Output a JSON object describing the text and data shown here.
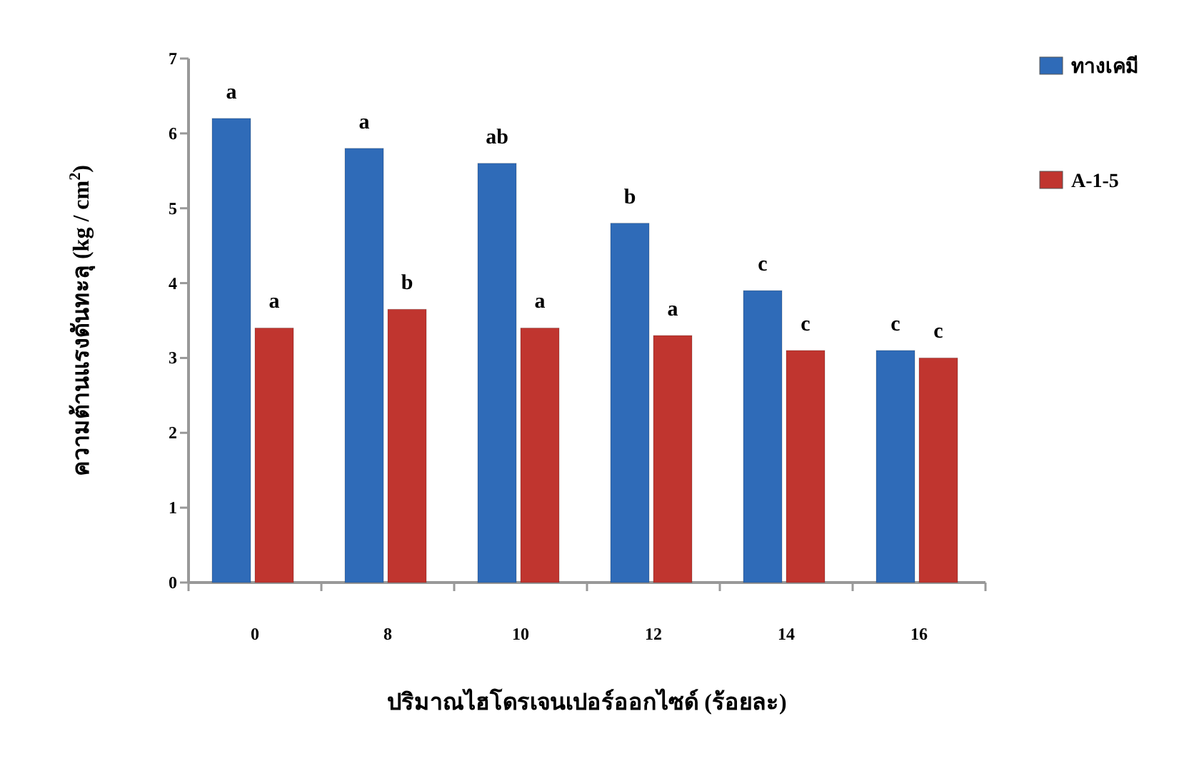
{
  "chart_data": {
    "type": "bar",
    "categories": [
      "0",
      "8",
      "10",
      "12",
      "14",
      "16"
    ],
    "series": [
      {
        "name": "ทางเคมี",
        "color": "#2f6bb8",
        "values": [
          6.2,
          5.8,
          5.6,
          4.8,
          3.9,
          3.1
        ]
      },
      {
        "name": "A-1-5",
        "color": "#c0352f",
        "values": [
          3.4,
          3.65,
          3.4,
          3.3,
          3.1,
          3.0
        ]
      }
    ],
    "ylim": [
      0,
      7
    ],
    "yticks": [
      0,
      1,
      2,
      3,
      4,
      5,
      6,
      7
    ],
    "xlabel": "ปริมาณไฮโดรเจนเปอร์ออกไซด์ (ร้อยละ)",
    "ylabel": "ความต้านแรงดันทะลุ (kg / cm$^{2}$)",
    "legend": "top right",
    "annotations": [
      {
        "text": "a",
        "x": "0",
        "y": 6.2
      },
      {
        "text": "a",
        "x": "8",
        "y": 5.8
      },
      {
        "text": "ab",
        "x": "10",
        "y": 5.6
      },
      {
        "text": "b",
        "x": "12",
        "y": 4.8
      },
      {
        "text": "c",
        "x": "14",
        "y": 3.9
      },
      {
        "text": "c",
        "x": "16",
        "y": 3.1
      },
      {
        "text": "a",
        "x": "0",
        "y": 3.4
      },
      {
        "text": "b",
        "x": "8",
        "y": 3.65
      },
      {
        "text": "a",
        "x": "10",
        "y": 3.4
      },
      {
        "text": "a",
        "x": "12",
        "y": 3.3
      },
      {
        "text": "c",
        "x": "14",
        "y": 3.1
      },
      {
        "text": "c",
        "x": "16",
        "y": 3.0
      }
    ]
  }
}
